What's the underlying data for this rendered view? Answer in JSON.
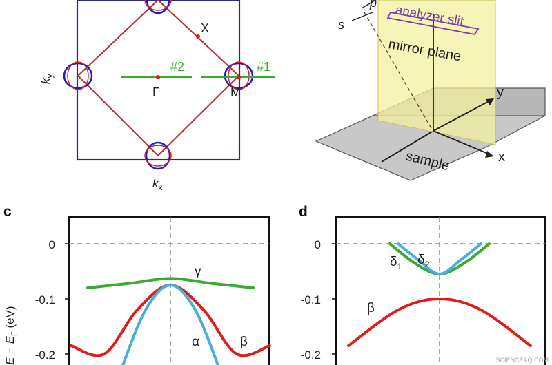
{
  "panel_a": {
    "x_label": "X",
    "gamma_label": "Γ",
    "m_label": "M",
    "ky_label": "k",
    "ky_sub": "y",
    "kx_label": "k",
    "kx_sub": "x",
    "cut1_label": "#1",
    "cut2_label": "#2"
  },
  "panel_b": {
    "analyzer_label": "analyzer slit",
    "mirror_label": "mirror plane",
    "sample_label": "sample",
    "x_axis": "x",
    "y_axis": "y",
    "s_label": "s",
    "p_label": "p"
  },
  "panel_c": {
    "letter": "c",
    "ylabel_main": "E − E",
    "ylabel_sub": "F",
    "ylabel_unit": " (eV)",
    "yticks": [
      "0",
      "-0.1",
      "-0.2"
    ],
    "gamma": "γ",
    "alpha": "α",
    "beta": "β"
  },
  "panel_d": {
    "letter": "d",
    "yticks": [
      "0",
      "-0.1",
      "-0.2"
    ],
    "delta1": "δ",
    "delta1_sub": "1",
    "delta2": "δ",
    "delta2_sub": "2",
    "beta": "β"
  },
  "watermark": "SCIENCEAQ.COM",
  "colors": {
    "red": "#e01b1b",
    "blue": "#1a1ad6",
    "green": "#3aaa35",
    "cyan": "#4aaed9",
    "brown_red": "#b03030",
    "navy": "#2b2b80",
    "purple": "#7a3fa0",
    "yellow_plane": "#f4f0a0",
    "gray_sample": "#c8c8c8"
  },
  "chart_data": [
    {
      "type": "line",
      "title": "c",
      "ylabel": "E − E_F (eV)",
      "ylim": [
        -0.23,
        0.05
      ],
      "yticks": [
        0,
        -0.1,
        -0.2
      ],
      "series": [
        {
          "name": "γ",
          "x": [
            -1,
            -0.5,
            0,
            0.5,
            1
          ],
          "y": [
            -0.08,
            -0.072,
            -0.063,
            -0.072,
            -0.08
          ]
        },
        {
          "name": "α",
          "x": [
            -0.6,
            -0.3,
            0,
            0.3,
            0.6
          ],
          "y": [
            -0.23,
            -0.12,
            -0.075,
            -0.12,
            -0.23
          ]
        },
        {
          "name": "β",
          "x": [
            -1.2,
            -0.8,
            -0.4,
            0,
            0.4,
            0.8,
            1.2
          ],
          "y": [
            -0.185,
            -0.2,
            -0.12,
            -0.075,
            -0.12,
            -0.2,
            -0.185
          ]
        }
      ]
    },
    {
      "type": "line",
      "title": "d",
      "ylabel": "E − E_F (eV)",
      "ylim": [
        -0.23,
        0.05
      ],
      "yticks": [
        0,
        -0.1,
        -0.2
      ],
      "series": [
        {
          "name": "δ1",
          "x": [
            -0.6,
            -0.3,
            0,
            0.3,
            0.6
          ],
          "y": [
            0,
            -0.035,
            -0.055,
            -0.035,
            0
          ]
        },
        {
          "name": "δ2",
          "x": [
            -0.5,
            -0.25,
            0,
            0.25,
            0.5
          ],
          "y": [
            0,
            -0.03,
            -0.055,
            -0.03,
            0
          ]
        },
        {
          "name": "β",
          "x": [
            -1.1,
            -0.5,
            0,
            0.5,
            1.1
          ],
          "y": [
            -0.185,
            -0.12,
            -0.1,
            -0.12,
            -0.185
          ]
        }
      ]
    }
  ]
}
